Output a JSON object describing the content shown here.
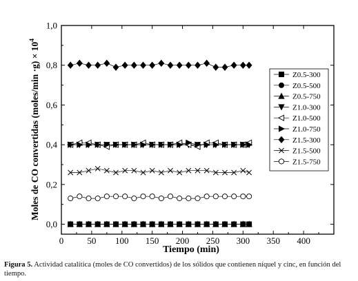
{
  "chart_data": {
    "type": "scatter",
    "xlabel": "Tiempo (min)",
    "ylabel": "Moles de CO convertidas (moles/min ·g) × 10",
    "ylabel_exponent": "4",
    "xlim": [
      0,
      450
    ],
    "ylim": [
      -0.05,
      1.0
    ],
    "x_ticks": [
      "0",
      "50",
      "100",
      "150",
      "200",
      "250",
      "300",
      "350",
      "400"
    ],
    "y_ticks": [
      "0,0",
      "0,2",
      "0,4",
      "0,6",
      "0,8",
      "1,0"
    ],
    "legend_position": "right",
    "x": [
      15,
      30,
      45,
      60,
      75,
      90,
      105,
      120,
      135,
      150,
      165,
      180,
      195,
      210,
      225,
      240,
      255,
      270,
      285,
      300,
      310
    ],
    "series": [
      {
        "name": "Z0.5-300",
        "marker": "square",
        "values": [
          0,
          0,
          0,
          0,
          0,
          0,
          0,
          0,
          0,
          0,
          0,
          0,
          0,
          0,
          0,
          0,
          0,
          0,
          0,
          0,
          0
        ]
      },
      {
        "name": "Z0.5-500",
        "marker": "circle",
        "values": [
          0,
          0,
          0,
          0,
          0,
          0,
          0,
          0,
          0,
          0,
          0,
          0,
          0,
          0,
          0,
          0,
          0,
          0,
          0,
          0,
          0
        ]
      },
      {
        "name": "Z0.5-750",
        "marker": "triangle-up",
        "values": [
          0,
          0,
          0,
          0,
          0,
          0,
          0,
          0,
          0,
          0,
          0,
          0,
          0,
          0,
          0,
          0,
          0,
          0,
          0,
          0,
          0
        ]
      },
      {
        "name": "Z1.0-300",
        "marker": "triangle-down",
        "values": [
          0.4,
          0.4,
          0.4,
          0.4,
          0.4,
          0.4,
          0.4,
          0.4,
          0.4,
          0.4,
          0.4,
          0.4,
          0.4,
          0.4,
          0.4,
          0.4,
          0.4,
          0.4,
          0.4,
          0.4,
          0.4
        ]
      },
      {
        "name": "Z1.0-500",
        "marker": "triangle-left-open",
        "values": [
          0.4,
          0.41,
          0.41,
          0.4,
          0.39,
          0.4,
          0.4,
          0.4,
          0.41,
          0.4,
          0.4,
          0.4,
          0.41,
          0.4,
          0.39,
          0.41,
          0.41,
          0.4,
          0.4,
          0.4,
          0.41
        ]
      },
      {
        "name": "Z1.0-750",
        "marker": "triangle-right",
        "values": [
          0.4,
          0.4,
          0.4,
          0.4,
          0.4,
          0.4,
          0.4,
          0.4,
          0.4,
          0.4,
          0.4,
          0.4,
          0.4,
          0.41,
          0.4,
          0.4,
          0.4,
          0.4,
          0.4,
          0.4,
          0.4
        ]
      },
      {
        "name": "Z1.5-300",
        "marker": "diamond",
        "values": [
          0.8,
          0.81,
          0.8,
          0.8,
          0.81,
          0.79,
          0.8,
          0.8,
          0.8,
          0.8,
          0.81,
          0.8,
          0.8,
          0.8,
          0.8,
          0.81,
          0.79,
          0.79,
          0.8,
          0.8,
          0.8
        ]
      },
      {
        "name": "Z1.5-500",
        "marker": "x",
        "values": [
          0.26,
          0.26,
          0.27,
          0.28,
          0.27,
          0.26,
          0.27,
          0.27,
          0.26,
          0.27,
          0.26,
          0.27,
          0.26,
          0.27,
          0.27,
          0.27,
          0.26,
          0.26,
          0.26,
          0.27,
          0.26
        ]
      },
      {
        "name": "Z1.5-750",
        "marker": "circle-open",
        "values": [
          0.13,
          0.14,
          0.13,
          0.13,
          0.14,
          0.14,
          0.14,
          0.13,
          0.14,
          0.14,
          0.13,
          0.14,
          0.13,
          0.13,
          0.13,
          0.14,
          0.14,
          0.14,
          0.14,
          0.14,
          0.14
        ]
      }
    ]
  },
  "caption": {
    "label": "Figura 5.",
    "text": " Actividad catalítica (moles de CO convertidos) de los sólidos que contienen níquel y cinc, en función del tiempo."
  }
}
